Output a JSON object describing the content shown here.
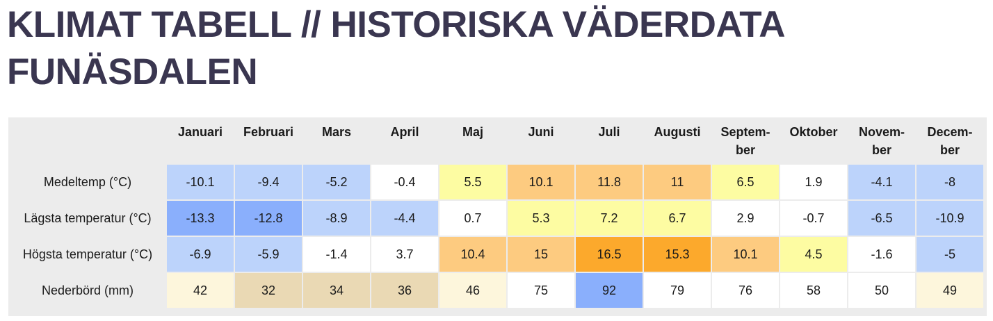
{
  "page": {
    "title": "KLIMAT TABELL // HISTORISKA VÄDERDATA FUNÄSDALEN"
  },
  "table": {
    "months": [
      "Januari",
      "Februari",
      "Mars",
      "April",
      "Maj",
      "Juni",
      "Juli",
      "Augusti",
      "Septem-\nber",
      "Oktober",
      "Novem-\nber",
      "Decem-\nber"
    ],
    "rows": [
      {
        "label": "Medeltemp (°C)",
        "values": [
          "-10.1",
          "-9.4",
          "-5.2",
          "-0.4",
          "5.5",
          "10.1",
          "11.8",
          "11",
          "6.5",
          "1.9",
          "-4.1",
          "-8"
        ],
        "colors": [
          "#bcd3fb",
          "#bcd3fb",
          "#bcd3fb",
          "#ffffff",
          "#fdfca2",
          "#fdcb80",
          "#fdcb80",
          "#fdcb80",
          "#fdfca2",
          "#ffffff",
          "#bcd3fb",
          "#bcd3fb"
        ]
      },
      {
        "label": "Lägsta temperatur (°C)",
        "values": [
          "-13.3",
          "-12.8",
          "-8.9",
          "-4.4",
          "0.7",
          "5.3",
          "7.2",
          "6.7",
          "2.9",
          "-0.7",
          "-6.5",
          "-10.9"
        ],
        "colors": [
          "#8aaffc",
          "#8aaffc",
          "#bcd3fb",
          "#bcd3fb",
          "#ffffff",
          "#fdfca2",
          "#fdfca2",
          "#fdfca2",
          "#ffffff",
          "#ffffff",
          "#bcd3fb",
          "#bcd3fb"
        ]
      },
      {
        "label": "Högsta temperatur (°C)",
        "values": [
          "-6.9",
          "-5.9",
          "-1.4",
          "3.7",
          "10.4",
          "15",
          "16.5",
          "15.3",
          "10.1",
          "4.5",
          "-1.6",
          "-5"
        ],
        "colors": [
          "#bcd3fb",
          "#bcd3fb",
          "#ffffff",
          "#ffffff",
          "#fdcb80",
          "#fdcb80",
          "#fca92c",
          "#fca92c",
          "#fdcb80",
          "#fdfca2",
          "#ffffff",
          "#bcd3fb"
        ]
      },
      {
        "label": "Nederbörd (mm)",
        "values": [
          "42",
          "32",
          "34",
          "36",
          "46",
          "75",
          "92",
          "79",
          "76",
          "58",
          "50",
          "49"
        ],
        "colors": [
          "#fdf6dc",
          "#ead9b4",
          "#ead9b4",
          "#ead9b4",
          "#fdf6dc",
          "#ffffff",
          "#8aaffc",
          "#ffffff",
          "#ffffff",
          "#ffffff",
          "#ffffff",
          "#fdf6dc"
        ]
      }
    ]
  }
}
